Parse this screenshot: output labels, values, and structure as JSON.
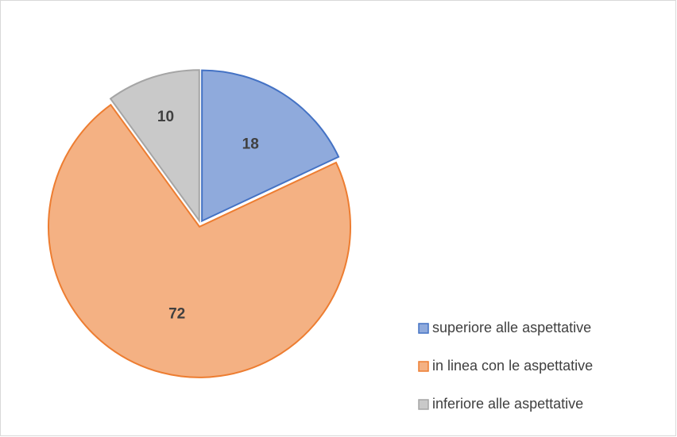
{
  "chart_data": {
    "type": "pie",
    "categories": [
      "superiore alle aspettative",
      "in linea con le aspettative",
      "inferiore alle aspettative"
    ],
    "values": [
      18,
      72,
      10
    ],
    "colors": [
      "#4472c4",
      "#ed7d31",
      "#a5a5a5"
    ],
    "legend": "right"
  }
}
